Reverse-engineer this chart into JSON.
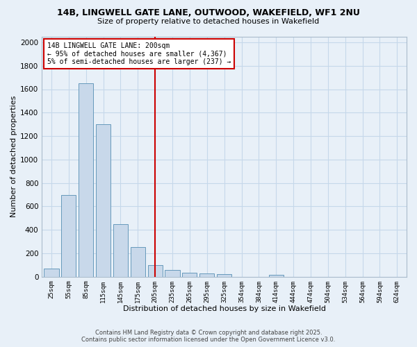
{
  "title_line1": "14B, LINGWELL GATE LANE, OUTWOOD, WAKEFIELD, WF1 2NU",
  "title_line2": "Size of property relative to detached houses in Wakefield",
  "xlabel": "Distribution of detached houses by size in Wakefield",
  "ylabel": "Number of detached properties",
  "categories": [
    "25sqm",
    "55sqm",
    "85sqm",
    "115sqm",
    "145sqm",
    "175sqm",
    "205sqm",
    "235sqm",
    "265sqm",
    "295sqm",
    "325sqm",
    "354sqm",
    "384sqm",
    "414sqm",
    "444sqm",
    "474sqm",
    "504sqm",
    "534sqm",
    "564sqm",
    "594sqm",
    "624sqm"
  ],
  "values": [
    70,
    700,
    1650,
    1300,
    450,
    250,
    100,
    55,
    35,
    25,
    20,
    0,
    0,
    15,
    0,
    0,
    0,
    0,
    0,
    0,
    0
  ],
  "bar_color": "#c8d8ea",
  "bar_edge_color": "#6699bb",
  "bar_edge_width": 0.7,
  "vline_x_index": 6,
  "vline_color": "#cc0000",
  "annotation_line1": "14B LINGWELL GATE LANE: 200sqm",
  "annotation_line2": "← 95% of detached houses are smaller (4,367)",
  "annotation_line3": "5% of semi-detached houses are larger (237) →",
  "annotation_box_color": "#cc0000",
  "ylim": [
    0,
    2050
  ],
  "yticks": [
    0,
    200,
    400,
    600,
    800,
    1000,
    1200,
    1400,
    1600,
    1800,
    2000
  ],
  "grid_color": "#c5d8ea",
  "bg_color": "#e8f0f8",
  "footer_line1": "Contains HM Land Registry data © Crown copyright and database right 2025.",
  "footer_line2": "Contains public sector information licensed under the Open Government Licence v3.0."
}
